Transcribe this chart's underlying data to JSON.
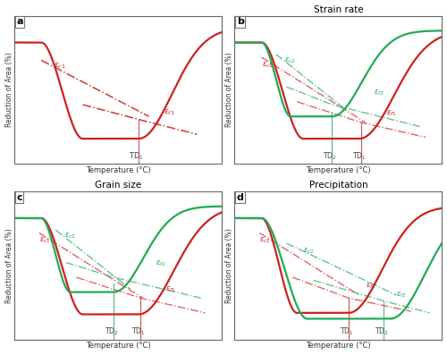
{
  "fig_width": 5.0,
  "fig_height": 3.97,
  "bg_color": "#ffffff",
  "panel_bg": "#ffffff",
  "panel_labels": [
    "a",
    "b",
    "c",
    "d"
  ],
  "panel_titles": [
    "",
    "Strain rate",
    "Grain size",
    "Precipitation"
  ],
  "ylabel": "Reduction of Area (%)",
  "xlabel": "Temperature (°C)",
  "red": "#cc2222",
  "green": "#22aa55",
  "red_dash": "#dd5555",
  "green_dash": "#55bb88"
}
